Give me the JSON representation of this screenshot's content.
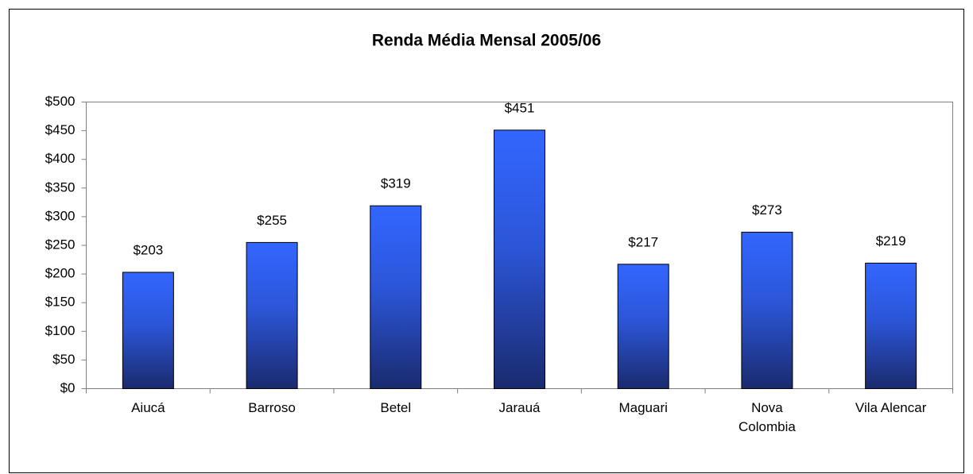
{
  "chart_data": {
    "type": "bar",
    "title": "Renda Média Mensal 2005/06",
    "categories": [
      "Aiucá",
      "Barroso",
      "Betel",
      "Jarauá",
      "Maguari",
      "Nova Colombia",
      "Vila Alencar"
    ],
    "values": [
      203,
      255,
      319,
      451,
      217,
      273,
      219
    ],
    "value_labels": [
      "$203",
      "$255",
      "$319",
      "$451",
      "$217",
      "$273",
      "$219"
    ],
    "color": "#3366ff",
    "ylim": [
      0,
      500
    ],
    "yticks": [
      {
        "value": 0,
        "label": "$0"
      },
      {
        "value": 50,
        "label": "$50"
      },
      {
        "value": 100,
        "label": "$100"
      },
      {
        "value": 150,
        "label": "$150"
      },
      {
        "value": 200,
        "label": "$200"
      },
      {
        "value": 250,
        "label": "$250"
      },
      {
        "value": 300,
        "label": "$300"
      },
      {
        "value": 350,
        "label": "$350"
      },
      {
        "value": 400,
        "label": "$400"
      },
      {
        "value": 450,
        "label": "$450"
      },
      {
        "value": 500,
        "label": "$500"
      }
    ],
    "grid": false
  }
}
